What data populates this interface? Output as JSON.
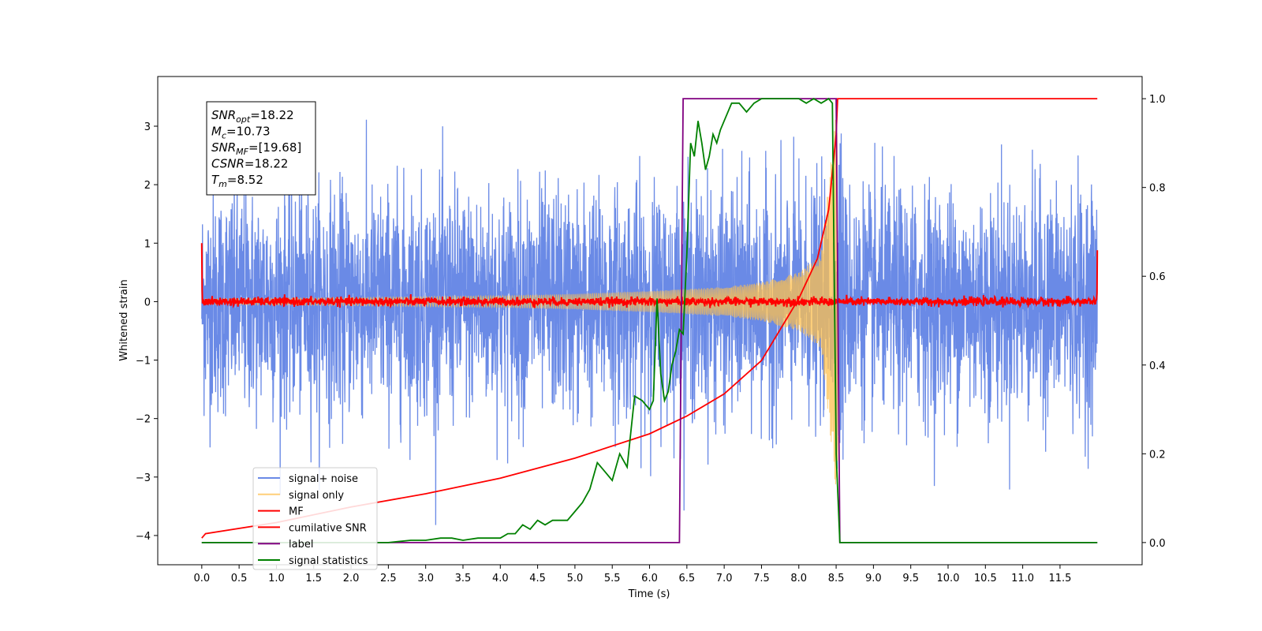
{
  "chart_data": {
    "type": "line",
    "xlabel": "Time (s)",
    "ylabel_left": "Whitened strain",
    "ylabel_right": "",
    "xlim": [
      -0.59,
      12.6
    ],
    "ylim_left": [
      -4.5,
      3.85
    ],
    "ylim_right": [
      -0.05,
      1.05
    ],
    "x_ticks": [
      "0.0",
      "0.5",
      "1.0",
      "1.5",
      "2.0",
      "2.5",
      "3.0",
      "3.5",
      "4.0",
      "4.5",
      "5.0",
      "5.5",
      "6.0",
      "6.5",
      "7.0",
      "7.5",
      "8.0",
      "8.5",
      "9.0",
      "9.5",
      "10.0",
      "10.5",
      "11.0",
      "11.5"
    ],
    "y_ticks_left": [
      "3",
      "2",
      "1",
      "0",
      "−1",
      "−2",
      "−3",
      "−4"
    ],
    "y_ticks_right": [
      "1.0",
      "0.8",
      "0.6",
      "0.4",
      "0.2",
      "0.0"
    ],
    "grid": false,
    "legend_position": "lower-left",
    "colors": {
      "signal_noise": "#6a8ae6",
      "signal_only": "#ffc04d",
      "mf": "#ff0000",
      "cumulative_snr": "#ff0000",
      "label": "#800080",
      "signal_statistics": "#008000"
    },
    "legend": [
      "signal+ noise",
      "signal only",
      "MF",
      "cumilative SNR",
      "label",
      "signal statistics"
    ],
    "annotation": {
      "lines": [
        {
          "var": "SNR",
          "sub": "opt",
          "value": "=18.22"
        },
        {
          "var": "M",
          "sub": "c",
          "value": "=10.73"
        },
        {
          "var": "SNR",
          "sub": "MF",
          "value": "=[19.68]"
        },
        {
          "var": "CSNR",
          "sub": "",
          "value": "=18.22"
        },
        {
          "var": "T",
          "sub": "m",
          "value": "=8.52"
        }
      ]
    },
    "series": [
      {
        "name": "signal+ noise",
        "axis": "left",
        "kind": "noise",
        "x_range": [
          0,
          12
        ],
        "amplitude": 3.5,
        "description_values": {
          "typical_max": 2.5,
          "typical_min": -2.8
        }
      },
      {
        "name": "signal only",
        "axis": "left",
        "kind": "chirp",
        "x_range": [
          0,
          8.52
        ],
        "envelope": {
          "x": [
            0,
            2,
            4,
            5,
            6,
            7,
            7.5,
            8.0,
            8.3,
            8.52
          ],
          "y": [
            0.05,
            0.07,
            0.1,
            0.13,
            0.18,
            0.25,
            0.33,
            0.5,
            0.8,
            3.5
          ]
        }
      },
      {
        "name": "MF",
        "axis": "left",
        "kind": "noise-flat",
        "x_range": [
          0,
          12
        ],
        "level": 0.0,
        "jitter": 0.08,
        "edge_values": {
          "start": 1.0,
          "end": 0.88
        }
      },
      {
        "name": "cumilative SNR",
        "axis": "right",
        "x": [
          0.0,
          0.05,
          1.0,
          2.0,
          3.0,
          4.0,
          5.0,
          6.0,
          6.5,
          7.0,
          7.5,
          8.0,
          8.25,
          8.4,
          8.5,
          8.52,
          12.0
        ],
        "y": [
          0.01,
          0.02,
          0.045,
          0.08,
          0.11,
          0.145,
          0.19,
          0.245,
          0.285,
          0.335,
          0.41,
          0.55,
          0.64,
          0.75,
          0.92,
          1.0,
          1.0
        ]
      },
      {
        "name": "label",
        "axis": "right",
        "x": [
          0.0,
          6.4,
          6.45,
          8.5,
          8.55,
          12.0
        ],
        "y": [
          0.0,
          0.0,
          1.0,
          1.0,
          0.0,
          0.0
        ]
      },
      {
        "name": "signal statistics",
        "axis": "right",
        "x": [
          0.0,
          0.5,
          1.0,
          1.5,
          2.0,
          2.5,
          2.8,
          3.0,
          3.2,
          3.35,
          3.5,
          3.7,
          4.0,
          4.1,
          4.2,
          4.3,
          4.4,
          4.5,
          4.6,
          4.7,
          4.8,
          4.9,
          5.0,
          5.1,
          5.2,
          5.3,
          5.4,
          5.5,
          5.6,
          5.7,
          5.8,
          5.9,
          6.0,
          6.05,
          6.1,
          6.15,
          6.2,
          6.25,
          6.3,
          6.35,
          6.4,
          6.45,
          6.5,
          6.55,
          6.6,
          6.65,
          6.7,
          6.75,
          6.8,
          6.85,
          6.9,
          6.95,
          7.0,
          7.1,
          7.2,
          7.3,
          7.4,
          7.5,
          7.6,
          7.8,
          8.0,
          8.1,
          8.2,
          8.3,
          8.4,
          8.45,
          8.5,
          8.55,
          8.6,
          9.0,
          10.0,
          11.0,
          12.0
        ],
        "y": [
          0.0,
          0.0,
          0.0,
          0.0,
          0.0,
          0.0,
          0.005,
          0.005,
          0.01,
          0.01,
          0.005,
          0.01,
          0.01,
          0.02,
          0.02,
          0.04,
          0.03,
          0.05,
          0.04,
          0.05,
          0.05,
          0.05,
          0.07,
          0.09,
          0.12,
          0.18,
          0.16,
          0.14,
          0.2,
          0.17,
          0.33,
          0.32,
          0.3,
          0.32,
          0.55,
          0.38,
          0.32,
          0.34,
          0.4,
          0.43,
          0.48,
          0.47,
          0.65,
          0.9,
          0.87,
          0.95,
          0.9,
          0.84,
          0.87,
          0.92,
          0.9,
          0.93,
          0.95,
          0.99,
          0.99,
          0.97,
          0.99,
          1.0,
          1.0,
          1.0,
          1.0,
          0.99,
          1.0,
          0.99,
          1.0,
          0.99,
          0.2,
          0.0,
          0.0,
          0.0,
          0.0,
          0.0,
          0.0
        ]
      }
    ]
  }
}
